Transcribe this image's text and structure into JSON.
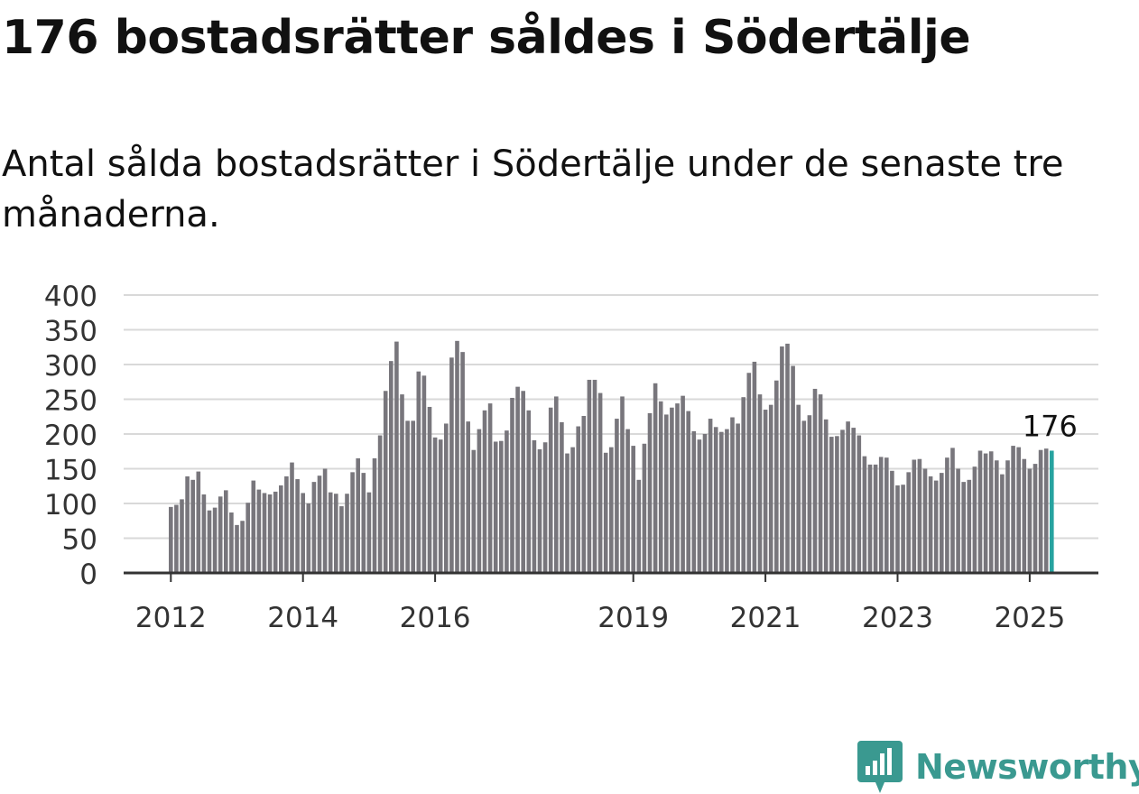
{
  "header": {
    "title": "176 bostadsrätter såldes i Södertälje",
    "subtitle": "Antal sålda bostadsrätter i Södertälje under de senaste tre månaderna."
  },
  "brand": {
    "name": "Newsworthy",
    "color": "#3a9990",
    "icon": "bar-chart-logo-icon"
  },
  "colors": {
    "bar": "#78767c",
    "highlight": "#27a3a0",
    "grid": "#d9d9d9",
    "axis": "#333333",
    "text": "#333333"
  },
  "chart_data": {
    "type": "bar",
    "title": "",
    "xlabel": "",
    "ylabel": "",
    "ylim": [
      0,
      400
    ],
    "yticks": [
      0,
      50,
      100,
      150,
      200,
      250,
      300,
      350,
      400
    ],
    "xtick_labels": [
      "2012",
      "2014",
      "2016",
      "2019",
      "2021",
      "2023",
      "2025"
    ],
    "grid": true,
    "highlight_label": "176",
    "start_month": "2012-01",
    "values": [
      95,
      98,
      106,
      139,
      134,
      146,
      113,
      90,
      94,
      110,
      119,
      87,
      69,
      75,
      101,
      133,
      120,
      115,
      113,
      117,
      126,
      139,
      159,
      135,
      115,
      100,
      131,
      140,
      150,
      116,
      114,
      96,
      114,
      145,
      165,
      144,
      116,
      165,
      198,
      262,
      305,
      333,
      257,
      219,
      219,
      290,
      284,
      239,
      195,
      192,
      215,
      310,
      334,
      318,
      218,
      177,
      207,
      234,
      244,
      189,
      190,
      205,
      252,
      268,
      262,
      234,
      191,
      178,
      188,
      238,
      254,
      217,
      172,
      181,
      211,
      226,
      278,
      278,
      259,
      173,
      181,
      222,
      254,
      207,
      183,
      134,
      186,
      230,
      273,
      247,
      228,
      238,
      244,
      255,
      233,
      204,
      192,
      200,
      222,
      210,
      203,
      207,
      224,
      215,
      253,
      288,
      304,
      257,
      235,
      242,
      277,
      326,
      330,
      298,
      242,
      219,
      227,
      265,
      257,
      221,
      196,
      197,
      206,
      218,
      209,
      198,
      168,
      156,
      156,
      167,
      166,
      147,
      126,
      127,
      145,
      163,
      164,
      150,
      139,
      133,
      144,
      166,
      180,
      150,
      131,
      134,
      153,
      176,
      172,
      175,
      162,
      142,
      162,
      183,
      181,
      164,
      150,
      157,
      177,
      179,
      176
    ]
  }
}
